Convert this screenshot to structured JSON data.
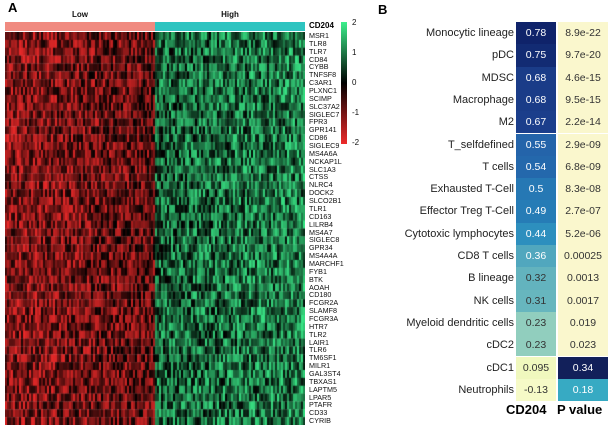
{
  "panels": {
    "a": "A",
    "b": "B"
  },
  "chart_data": [
    {
      "type": "heatmap",
      "panel": "A",
      "groups": [
        {
          "name": "Low",
          "color": "#f08a80"
        },
        {
          "name": "High",
          "color": "#2ec4c0"
        }
      ],
      "annotation_label": "CD204",
      "genes": [
        "MSR1",
        "TLR8",
        "TLR7",
        "CD84",
        "CYBB",
        "TNFSF8",
        "C3AR1",
        "PLXNC1",
        "SCIMP",
        "SLC37A2",
        "SIGLEC7",
        "FPR3",
        "GPR141",
        "CD86",
        "SIGLEC9",
        "MS4A6A",
        "NCKAP1L",
        "SLC1A3",
        "CTSS",
        "NLRC4",
        "DOCK2",
        "SLCO2B1",
        "TLR1",
        "CD163",
        "LILRB4",
        "MS4A7",
        "SIGLEC8",
        "GPR34",
        "MS4A4A",
        "MARCHF1",
        "FYB1",
        "BTK",
        "AOAH",
        "CD180",
        "FCGR2A",
        "SLAMF8",
        "FCGR3A",
        "HTR7",
        "TLR2",
        "LAIR1",
        "TLR6",
        "TM6SF1",
        "MILR1",
        "GAL3ST4",
        "TBXAS1",
        "LAPTM5",
        "LPAR5",
        "PTAFR",
        "CD33",
        "CYRIB"
      ],
      "colorbar": {
        "ticks": [
          "2",
          "1",
          "0",
          "-1",
          "-2"
        ],
        "range": [
          -2,
          2
        ],
        "colors": {
          "low": "#ee2a2a",
          "mid": "#000000",
          "high": "#3cf08c"
        }
      },
      "pattern": "Low group predominantly red (under-expressed), High group predominantly green (over-expressed)"
    },
    {
      "type": "table",
      "panel": "B",
      "rows": [
        "Monocytic lineage",
        "pDC",
        "MDSC",
        "Macrophage",
        "M2",
        "T_selfdefined",
        "T cells",
        "Exhausted T-Cell",
        "Effector Treg T-Cell",
        "Cytotoxic lymphocytes",
        "CD8 T cells",
        "B lineage",
        "NK cells",
        "Myeloid dendritic cells",
        "cDC2",
        "cDC1",
        "Neutrophils"
      ],
      "columns": [
        "CD204",
        "P value"
      ],
      "correlation": [
        "0.78",
        "0.75",
        "0.68",
        "0.68",
        "0.67",
        "0.55",
        "0.54",
        "0.5",
        "0.49",
        "0.44",
        "0.36",
        "0.32",
        "0.31",
        "0.23",
        "0.23",
        "0.095",
        "-0.13"
      ],
      "p_values": [
        "8.9e-22",
        "9.7e-20",
        "4.6e-15",
        "9.5e-15",
        "2.2e-14",
        "2.9e-09",
        "6.8e-09",
        "8.3e-08",
        "2.7e-07",
        "5.2e-06",
        "0.00025",
        "0.0013",
        "0.0017",
        "0.019",
        "0.023",
        "0.34",
        "0.18"
      ]
    }
  ]
}
